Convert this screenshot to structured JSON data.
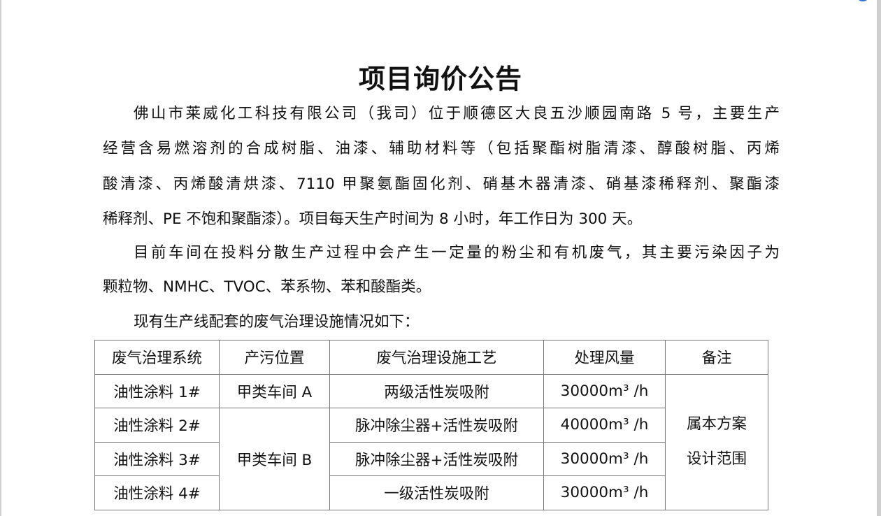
{
  "document": {
    "title": "项目询价公告",
    "paragraph_lines": [
      "佛山市莱威化工科技有限公司（我司）位于顺德区大良五沙顺园南路 5 号，主要生产",
      "经营含易燃溶剂的合成树脂、油漆、辅助材料等（包括聚酯树脂清漆、醇酸树脂、丙烯",
      "酸清漆、丙烯酸清烘漆、7110 甲聚氨酯固化剂、硝基木器清漆、硝基漆稀释剂、聚酯漆",
      "稀释剂、PE 不饱和聚酯漆）。项目每天生产时间为 8 小时，年工作日为 300 天。",
      "目前车间在投料分散生产过程中会产生一定量的粉尘和有机废气，其主要污染因子为",
      "颗粒物、NMHC、TVOC、苯系物、苯和酸酯类。",
      "现有生产线配套的废气治理设施情况如下："
    ]
  },
  "table": {
    "headers": [
      "废气治理系统",
      "产污位置",
      "废气治理设施工艺",
      "处理风量",
      "备注"
    ],
    "rows": [
      {
        "system": "油性涂料  1#",
        "location": "甲类车间 A",
        "process": "两级活性炭吸附",
        "flow": "30000m³ /h"
      },
      {
        "system": "油性涂料  2#",
        "location": "甲类车间 B",
        "process": "脉冲除尘器+活性炭吸附",
        "flow": "40000m³ /h"
      },
      {
        "system": "油性涂料  3#",
        "process": "脉冲除尘器+活性炭吸附",
        "flow": "30000m³ /h"
      },
      {
        "system": "油性涂料  4#",
        "process": "一级活性炭吸附",
        "flow": "30000m³ /h"
      }
    ],
    "remark_line1": "属本方案",
    "remark_line2": "设计范围"
  }
}
